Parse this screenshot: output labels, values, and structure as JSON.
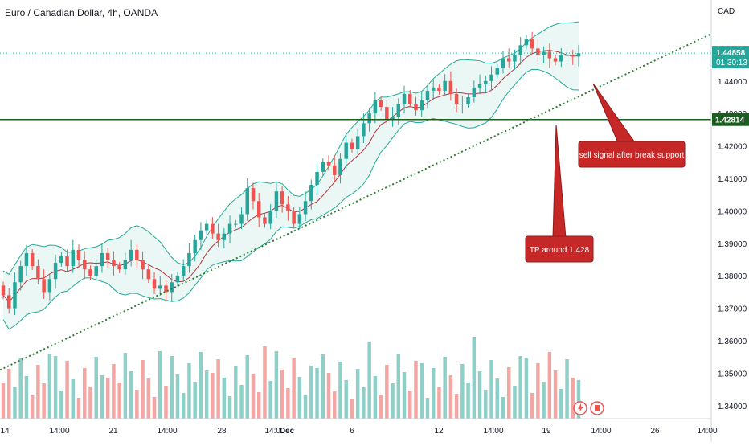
{
  "header": {
    "title": "Euro / Canadian Dollar, 4h, OANDA"
  },
  "price_axis": {
    "currency": "CAD",
    "last_price": "1.44858",
    "countdown": "01:30:13",
    "support_label": "1.42814"
  },
  "annotations": {
    "sell": "sell signal after break support",
    "tp": "TP around 1.428"
  },
  "icons": [
    "flash-icon",
    "canada-flag-icon"
  ],
  "colors": {
    "up": "#26a69a",
    "down": "#ef5350",
    "band": "#22ab94",
    "band_fill": "#e8f6f3",
    "basis": "#b2363f",
    "support": "#1b5e20",
    "trendline": "#2e7d32",
    "callout": "#c62828",
    "label_bg": "#1b5e20"
  },
  "chart_data": {
    "type": "candlestick",
    "symbol": "EURCAD",
    "timeframe": "4h",
    "y_range": [
      1.336,
      1.459
    ],
    "y_ticks": [
      "1.34000",
      "1.35000",
      "1.36000",
      "1.37000",
      "1.38000",
      "1.39000",
      "1.40000",
      "1.41000",
      "1.42000",
      "1.43000",
      "1.44000"
    ],
    "x_ticks": [
      "14",
      "14:00",
      "21",
      "14:00",
      "28",
      "14:00",
      "Dec",
      "6",
      "12",
      "14:00",
      "19",
      "14:00",
      "26",
      "14:00"
    ],
    "last_close": 1.44858,
    "support_level": 1.42814,
    "trendline": {
      "start": 1.351,
      "end_at_support_cross": 1.42814
    },
    "series": [
      {
        "name": "close",
        "values": [
          1.374,
          1.37,
          1.378,
          1.383,
          1.387,
          1.383,
          1.379,
          1.375,
          1.379,
          1.384,
          1.386,
          1.383,
          1.388,
          1.385,
          1.382,
          1.38,
          1.383,
          1.387,
          1.385,
          1.383,
          1.382,
          1.385,
          1.388,
          1.385,
          1.382,
          1.379,
          1.376,
          1.377,
          1.375,
          1.378,
          1.38,
          1.383,
          1.387,
          1.391,
          1.394,
          1.396,
          1.393,
          1.391,
          1.393,
          1.396,
          1.396,
          1.399,
          1.407,
          1.403,
          1.398,
          1.396,
          1.4,
          1.406,
          1.402,
          1.4,
          1.396,
          1.399,
          1.403,
          1.408,
          1.412,
          1.415,
          1.414,
          1.411,
          1.416,
          1.421,
          1.419,
          1.423,
          1.427,
          1.43,
          1.434,
          1.432,
          1.428,
          1.429,
          1.433,
          1.436,
          1.433,
          1.431,
          1.434,
          1.437,
          1.438,
          1.437,
          1.44,
          1.436,
          1.433,
          1.433,
          1.435,
          1.438,
          1.439,
          1.44,
          1.442,
          1.444,
          1.447,
          1.446,
          1.448,
          1.451,
          1.453,
          1.45,
          1.448,
          1.449,
          1.447,
          1.446,
          1.448,
          1.448,
          1.4475,
          1.44858
        ]
      }
    ]
  }
}
